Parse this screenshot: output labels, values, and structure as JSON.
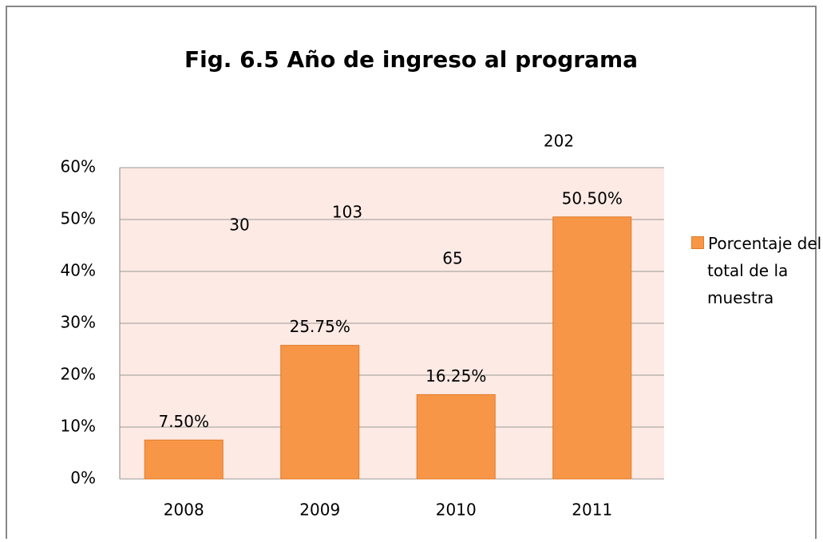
{
  "chart_data": {
    "type": "bar",
    "title": "Fig. 6.5 Año de ingreso al programa",
    "categories": [
      "2008",
      "2009",
      "2010",
      "2011"
    ],
    "series": [
      {
        "name": "Porcentaje del total de la muestra",
        "color": "#f79646",
        "values": [
          7.5,
          25.75,
          16.25,
          50.5
        ],
        "value_labels": [
          "7.50%",
          "25.75%",
          "16.25%",
          "50.50%"
        ]
      }
    ],
    "annotations": [
      30,
      103,
      65,
      202
    ],
    "ylim": [
      0,
      60
    ],
    "yticks": [
      {
        "value": 0,
        "label": "0%"
      },
      {
        "value": 10,
        "label": "10%"
      },
      {
        "value": 20,
        "label": "20%"
      },
      {
        "value": 30,
        "label": "30%"
      },
      {
        "value": 40,
        "label": "40%"
      },
      {
        "value": 50,
        "label": "50%"
      },
      {
        "value": 60,
        "label": "60%"
      }
    ],
    "grid": true,
    "legend": "right"
  }
}
